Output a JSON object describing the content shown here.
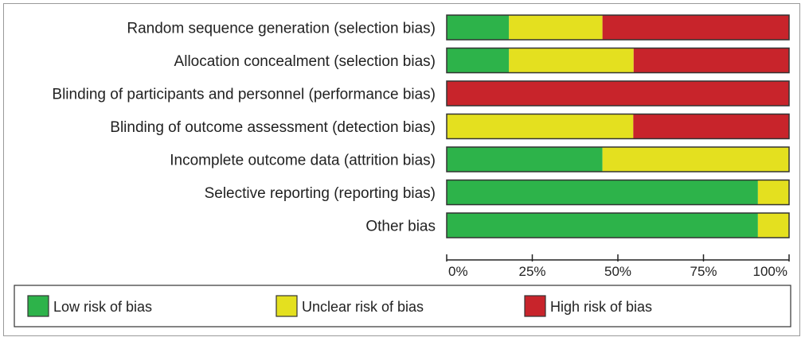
{
  "chart_data": {
    "type": "bar",
    "stacked": true,
    "orientation": "horizontal",
    "categories": [
      "Random sequence generation (selection bias)",
      "Allocation concealment (selection bias)",
      "Blinding of participants and personnel (performance bias)",
      "Blinding of outcome assessment (detection bias)",
      "Incomplete outcome data (attrition bias)",
      "Selective reporting (reporting bias)",
      "Other bias"
    ],
    "series": [
      {
        "name": "Low risk of bias",
        "color": "#2db34a",
        "values": [
          18.2,
          18.2,
          0,
          0,
          45.5,
          90.9,
          90.9
        ]
      },
      {
        "name": "Unclear risk of bias",
        "color": "#e4e01f",
        "values": [
          27.3,
          36.4,
          0,
          54.5,
          54.5,
          9.1,
          9.1
        ]
      },
      {
        "name": "High risk of bias",
        "color": "#c8242b",
        "values": [
          54.5,
          45.4,
          100,
          45.5,
          0,
          0,
          0
        ]
      }
    ],
    "xlim": [
      0,
      100
    ],
    "xticks": [
      "0%",
      "25%",
      "50%",
      "75%",
      "100%"
    ],
    "legend": "bottom",
    "title": "",
    "xlabel": "",
    "ylabel": ""
  }
}
